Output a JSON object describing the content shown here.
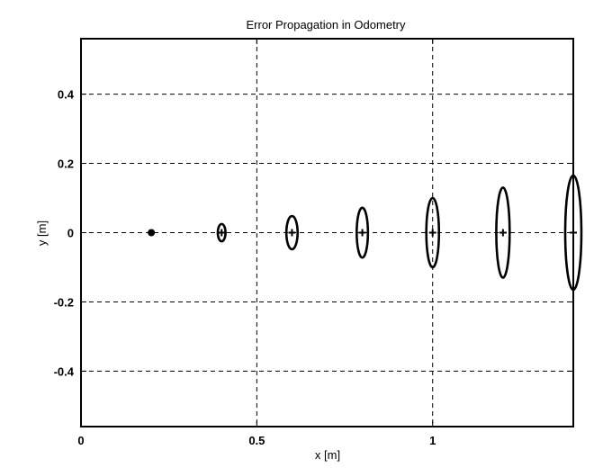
{
  "chart_data": {
    "type": "scatter",
    "title": "Error Propagation in Odometry",
    "xlabel": "x [m]",
    "ylabel": "y [m]",
    "xlim": [
      0,
      1.4
    ],
    "ylim": [
      -0.56,
      0.56
    ],
    "xticks": [
      0,
      0.5,
      1
    ],
    "xtick_labels": [
      "0",
      "0.5",
      "1"
    ],
    "yticks": [
      -0.4,
      -0.2,
      0,
      0.2,
      0.4
    ],
    "ytick_labels": [
      "-0.4",
      "-0.2",
      "0",
      "0.2",
      "0.4"
    ],
    "grid": true,
    "start_point": {
      "x": 0.2,
      "y": 0
    },
    "poses": [
      {
        "x": 0.4,
        "y": 0,
        "sx": 0.011,
        "sy": 0.025
      },
      {
        "x": 0.6,
        "y": 0,
        "sx": 0.016,
        "sy": 0.048
      },
      {
        "x": 0.8,
        "y": 0,
        "sx": 0.016,
        "sy": 0.072
      },
      {
        "x": 1.0,
        "y": 0,
        "sx": 0.018,
        "sy": 0.1
      },
      {
        "x": 1.2,
        "y": 0,
        "sx": 0.019,
        "sy": 0.13
      },
      {
        "x": 1.4,
        "y": 0,
        "sx": 0.023,
        "sy": 0.165
      }
    ],
    "colors": {
      "line": "#000000",
      "grid": "#000000",
      "background": "#ffffff"
    }
  }
}
